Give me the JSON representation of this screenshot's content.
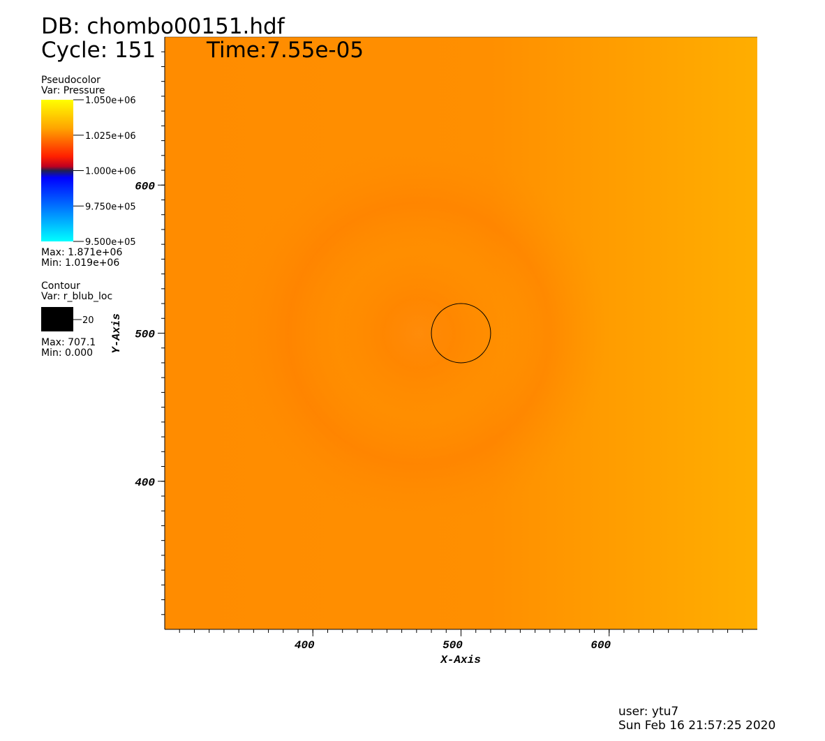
{
  "header": {
    "db": "DB: chombo00151.hdf",
    "cycle": "Cycle: 151",
    "time": "Time:7.55e-05"
  },
  "chart_data": {
    "type": "pseudocolor",
    "xlabel": "X-Axis",
    "ylabel": "Y-Axis",
    "xlim": [
      300,
      700
    ],
    "ylim": [
      300,
      700
    ],
    "xticks": [
      400,
      500,
      600
    ],
    "yticks": [
      400,
      500,
      600
    ],
    "minor_tick_step": 10,
    "pseudocolor": {
      "title": "Pseudocolor",
      "var": "Var: Pressure",
      "range": [
        950000,
        1050000
      ],
      "ticks": [
        {
          "value": 1050000,
          "label": "1.050e+06"
        },
        {
          "value": 1025000,
          "label": "1.025e+06"
        },
        {
          "value": 1000000,
          "label": "1.000e+06"
        },
        {
          "value": 975000,
          "label": "9.750e+05"
        },
        {
          "value": 950000,
          "label": "9.500e+05"
        }
      ],
      "max": "Max:  1.871e+06",
      "min": "Min:  1.019e+06"
    },
    "contour": {
      "title": "Contour",
      "var": "Var: r_blub_loc",
      "levels": [
        20
      ],
      "color": "#000000",
      "max": "Max: 707.1",
      "min": "Min: 0.000"
    }
  },
  "footer": {
    "user": "user: ytu7",
    "date": "Sun Feb 16 21:57:25 2020"
  }
}
